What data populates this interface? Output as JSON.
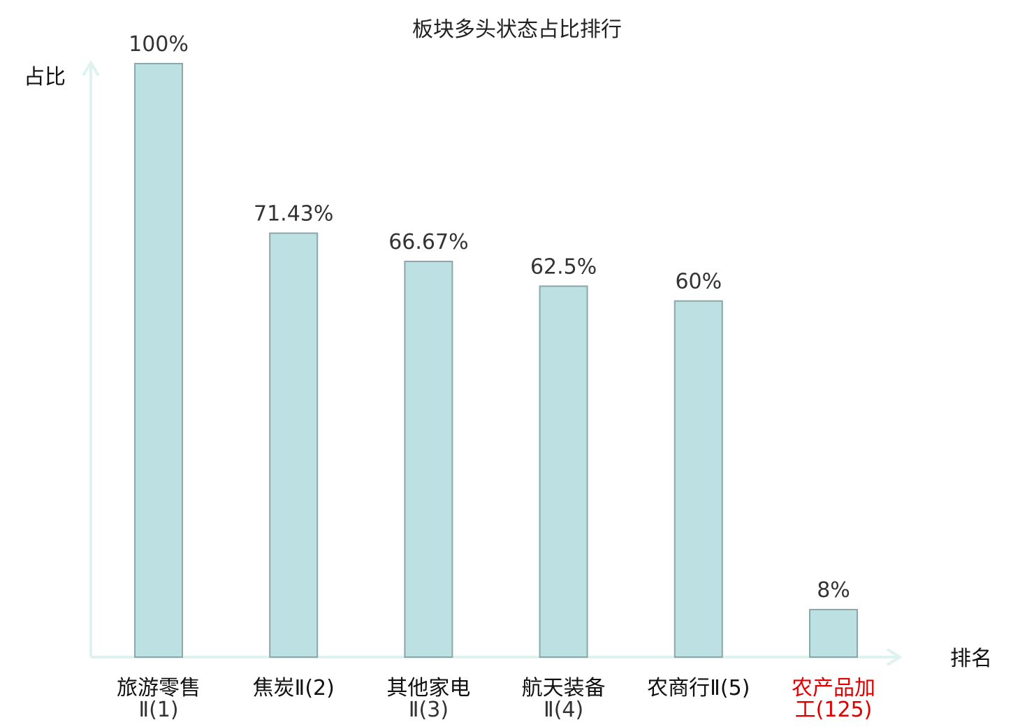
{
  "chart_data": {
    "type": "bar",
    "title": "板块多头状态占比排行",
    "ylabel": "占比",
    "xlabel": "排名",
    "ylim": [
      0,
      100
    ],
    "grid": false,
    "categories": [
      {
        "main": "旅游零售",
        "sub": "Ⅱ(1)",
        "highlight": false
      },
      {
        "main": "焦炭Ⅱ(2)",
        "sub": "",
        "highlight": false
      },
      {
        "main": "其他家电",
        "sub": "Ⅱ(3)",
        "highlight": false
      },
      {
        "main": "航天装备",
        "sub": "Ⅱ(4)",
        "highlight": false
      },
      {
        "main": "农商行Ⅱ(5)",
        "sub": "",
        "highlight": false
      },
      {
        "main": "农产品加",
        "sub": "工(125)",
        "highlight": true
      }
    ],
    "values": [
      100,
      71.43,
      66.67,
      62.5,
      60,
      8
    ],
    "value_labels": [
      "100%",
      "71.43%",
      "66.67%",
      "62.5%",
      "60%",
      "8%"
    ],
    "colors": {
      "bar_fill": "#bde0e2",
      "bar_stroke": "#8aa7aa",
      "axis": "#e0f2ef",
      "highlight_text": "#e00000",
      "normal_text": "#111111"
    }
  }
}
